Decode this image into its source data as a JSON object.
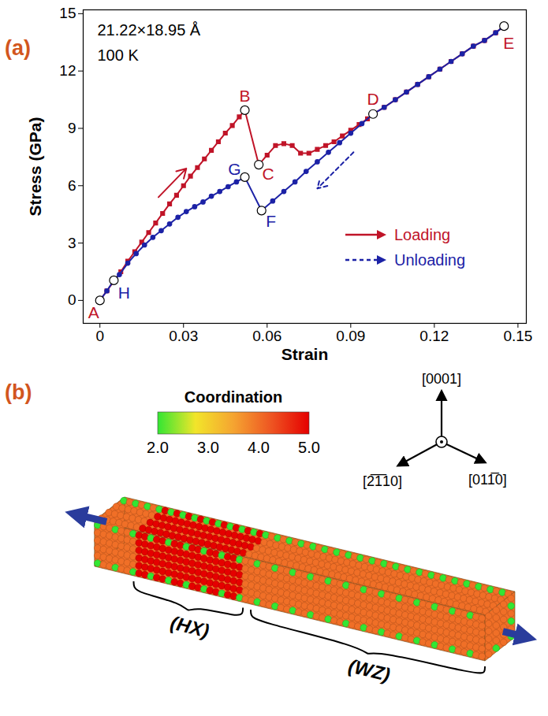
{
  "chart_data": {
    "type": "line",
    "panel_label": "(a)",
    "annotations": [
      "21.22×18.95 Å",
      "100 K"
    ],
    "xlabel": "Strain",
    "ylabel": "Stress (GPa)",
    "xlim": [
      -0.006,
      0.153
    ],
    "xticks": [
      0,
      0.03,
      0.06,
      0.09,
      0.12,
      0.15
    ],
    "ylim": [
      -1.2,
      15.2
    ],
    "yticks": [
      0,
      3,
      6,
      9,
      12,
      15
    ],
    "legend": "bottom-right",
    "series": [
      {
        "name": "Loading",
        "color": "#c01428",
        "marker": "square",
        "line_style": "solid",
        "x": [
          0,
          0.0025,
          0.005,
          0.0075,
          0.01,
          0.0125,
          0.015,
          0.0175,
          0.02,
          0.0225,
          0.025,
          0.0275,
          0.03,
          0.0325,
          0.035,
          0.0375,
          0.04,
          0.0425,
          0.045,
          0.0475,
          0.05,
          0.052,
          0.057,
          0.06,
          0.063,
          0.066,
          0.069,
          0.072,
          0.075,
          0.078,
          0.081,
          0.084,
          0.087,
          0.09,
          0.093,
          0.096,
          0.098,
          0.102,
          0.106,
          0.11,
          0.114,
          0.118,
          0.122,
          0.126,
          0.13,
          0.134,
          0.138,
          0.142,
          0.145
        ],
        "values": [
          0,
          0.5,
          1.0,
          1.5,
          2.05,
          2.55,
          3.05,
          3.55,
          4.05,
          4.55,
          5.05,
          5.5,
          6.0,
          6.5,
          6.95,
          7.4,
          7.85,
          8.3,
          8.75,
          9.15,
          9.6,
          9.95,
          7.1,
          7.6,
          8.1,
          8.2,
          8.1,
          7.7,
          7.7,
          7.9,
          8.1,
          8.3,
          8.6,
          8.9,
          9.2,
          9.5,
          9.75,
          10.1,
          10.5,
          10.9,
          11.3,
          11.7,
          12.1,
          12.5,
          12.9,
          13.3,
          13.6,
          14.0,
          14.35
        ]
      },
      {
        "name": "Unloading",
        "color": "#1c22a6",
        "marker": "circle",
        "line_style": "solid",
        "x": [
          0,
          0.0025,
          0.005,
          0.007,
          0.01,
          0.013,
          0.016,
          0.019,
          0.022,
          0.025,
          0.028,
          0.031,
          0.034,
          0.037,
          0.04,
          0.043,
          0.046,
          0.049,
          0.052,
          0.058,
          0.062,
          0.066,
          0.07,
          0.074,
          0.078,
          0.082,
          0.086,
          0.09,
          0.094,
          0.098,
          0.102,
          0.106,
          0.11,
          0.114,
          0.118,
          0.122,
          0.126,
          0.13,
          0.134,
          0.138,
          0.142,
          0.145
        ],
        "values": [
          0,
          0.5,
          1.05,
          1.35,
          1.95,
          2.45,
          2.9,
          3.3,
          3.65,
          4.0,
          4.35,
          4.65,
          4.9,
          5.15,
          5.45,
          5.7,
          5.95,
          6.2,
          6.45,
          4.7,
          5.2,
          5.7,
          6.2,
          6.75,
          7.25,
          7.75,
          8.25,
          8.75,
          9.25,
          9.75,
          10.1,
          10.5,
          10.9,
          11.3,
          11.7,
          12.1,
          12.5,
          12.9,
          13.3,
          13.6,
          14.0,
          14.35
        ]
      }
    ],
    "points": [
      {
        "label": "A",
        "x": 0,
        "y": 0,
        "color": "#c01428"
      },
      {
        "label": "B",
        "x": 0.052,
        "y": 9.95,
        "color": "#c01428"
      },
      {
        "label": "C",
        "x": 0.057,
        "y": 7.1,
        "color": "#c01428"
      },
      {
        "label": "D",
        "x": 0.098,
        "y": 9.75,
        "color": "#c01428"
      },
      {
        "label": "E",
        "x": 0.145,
        "y": 14.35,
        "color": "#c01428"
      },
      {
        "label": "F",
        "x": 0.058,
        "y": 4.7,
        "color": "#1c22a6"
      },
      {
        "label": "G",
        "x": 0.052,
        "y": 6.45,
        "color": "#1c22a6"
      },
      {
        "label": "H",
        "x": 0.005,
        "y": 1.05,
        "color": "#1c22a6"
      }
    ],
    "direction_arrows": [
      {
        "x1": 0.021,
        "y1": 5.4,
        "x2": 0.031,
        "y2": 6.9,
        "color": "#c01428",
        "line_style": "solid"
      },
      {
        "x1": 0.091,
        "y1": 7.75,
        "x2": 0.078,
        "y2": 5.85,
        "color": "#1c22a6",
        "line_style": "dashed"
      }
    ]
  },
  "panel_b": {
    "panel_label": "(b)",
    "colorbar": {
      "title": "Coordination",
      "range": [
        2.0,
        5.0
      ],
      "ticks": [
        {
          "value": 2,
          "label": "2.0"
        },
        {
          "value": 3,
          "label": "3.0"
        },
        {
          "value": 4,
          "label": "4.0"
        },
        {
          "value": 5,
          "label": "5.0"
        }
      ],
      "colors": [
        "#33e633",
        "#f2e52a",
        "#f5a431",
        "#ee5522",
        "#e50000"
      ]
    },
    "directions": [
      "[0001]",
      "[2̅1̅10]",
      "[011̅0]"
    ],
    "regions": [
      {
        "label": "(HX)",
        "coordination": 5.0
      },
      {
        "label": "(WZ)",
        "coordination": 4.0
      }
    ],
    "edge_coordination": 2.0
  }
}
